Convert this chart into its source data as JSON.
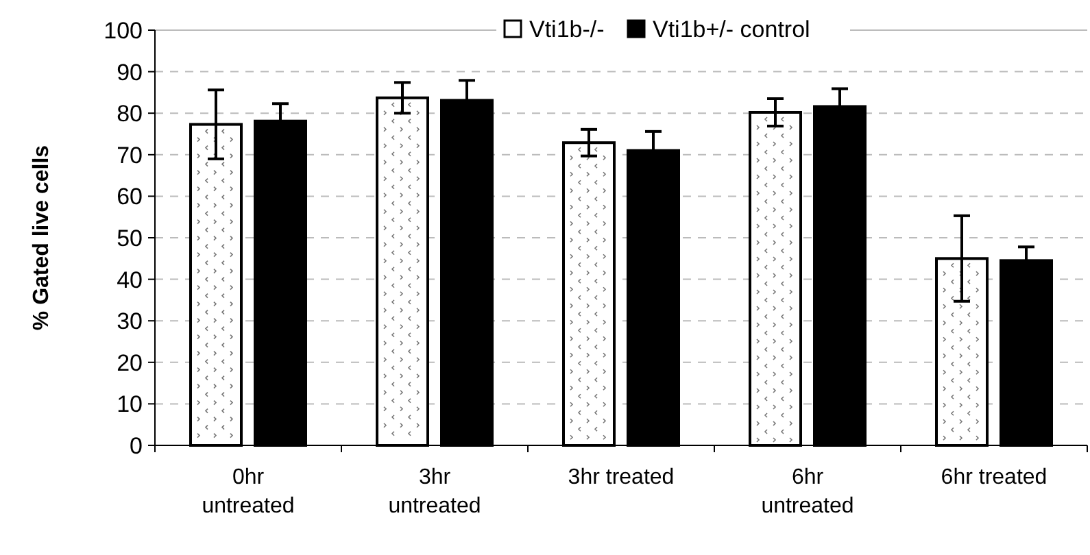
{
  "chart_data": {
    "type": "bar",
    "ylabel": "% Gated live cells",
    "categories": [
      "0hr untreated",
      "3hr untreated",
      "3hr treated",
      "6hr untreated",
      "6hr treated"
    ],
    "series": [
      {
        "name": "Vti1b-/-",
        "color": "#ffffff",
        "values": [
          77.3,
          83.7,
          72.9,
          80.2,
          45.0
        ],
        "errors": [
          8.3,
          3.7,
          3.2,
          3.3,
          10.3
        ]
      },
      {
        "name": "Vti1b+/- control",
        "color": "#000000",
        "values": [
          78.1,
          83.1,
          71.0,
          81.6,
          44.5
        ],
        "errors": [
          4.2,
          4.8,
          4.6,
          4.3,
          3.3
        ]
      }
    ],
    "ylim": [
      0,
      100
    ],
    "yticks": [
      0,
      10,
      20,
      30,
      40,
      50,
      60,
      70,
      80,
      90,
      100
    ],
    "grid": "y",
    "legend": "top"
  }
}
